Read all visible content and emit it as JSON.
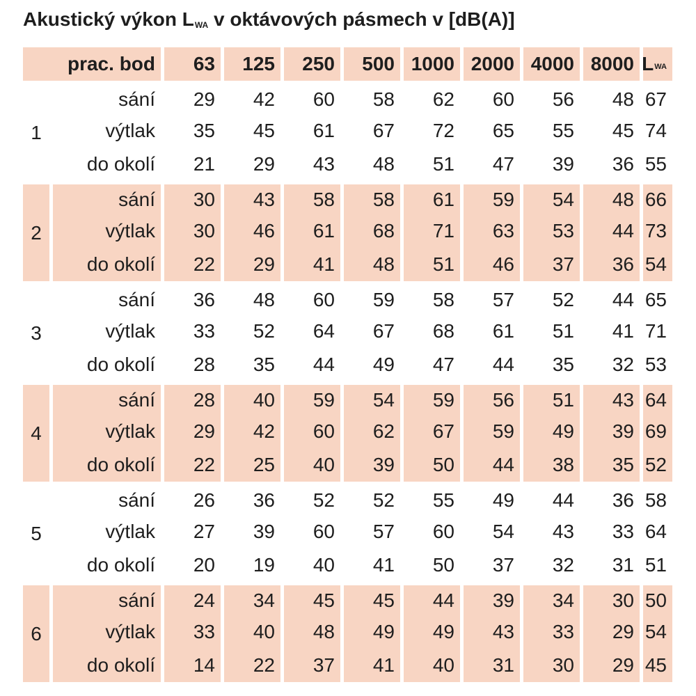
{
  "title": {
    "text": "Akustický výkon L",
    "sub": "WA",
    "rest": " v oktávových pásmech v [dB(A)]"
  },
  "header": {
    "label": "prac. bod",
    "bands": [
      "63",
      "125",
      "250",
      "500",
      "1000",
      "2000",
      "4000",
      "8000"
    ],
    "total": "L",
    "total_sub": "WA"
  },
  "groups": [
    {
      "id": "1",
      "rows": [
        {
          "label": "sání",
          "values": [
            "29",
            "42",
            "60",
            "58",
            "62",
            "60",
            "56",
            "48",
            "67"
          ]
        },
        {
          "label": "výtlak",
          "values": [
            "35",
            "45",
            "61",
            "67",
            "72",
            "65",
            "55",
            "45",
            "74"
          ]
        },
        {
          "label": "do okolí",
          "values": [
            "21",
            "29",
            "43",
            "48",
            "51",
            "47",
            "39",
            "36",
            "55"
          ]
        }
      ]
    },
    {
      "id": "2",
      "rows": [
        {
          "label": "sání",
          "values": [
            "30",
            "43",
            "58",
            "58",
            "61",
            "59",
            "54",
            "48",
            "66"
          ]
        },
        {
          "label": "výtlak",
          "values": [
            "30",
            "46",
            "61",
            "68",
            "71",
            "63",
            "53",
            "44",
            "73"
          ]
        },
        {
          "label": "do okolí",
          "values": [
            "22",
            "29",
            "41",
            "48",
            "51",
            "46",
            "37",
            "36",
            "54"
          ]
        }
      ]
    },
    {
      "id": "3",
      "rows": [
        {
          "label": "sání",
          "values": [
            "36",
            "48",
            "60",
            "59",
            "58",
            "57",
            "52",
            "44",
            "65"
          ]
        },
        {
          "label": "výtlak",
          "values": [
            "33",
            "52",
            "64",
            "67",
            "68",
            "61",
            "51",
            "41",
            "71"
          ]
        },
        {
          "label": "do okolí",
          "values": [
            "28",
            "35",
            "44",
            "49",
            "47",
            "44",
            "35",
            "32",
            "53"
          ]
        }
      ]
    },
    {
      "id": "4",
      "rows": [
        {
          "label": "sání",
          "values": [
            "28",
            "40",
            "59",
            "54",
            "59",
            "56",
            "51",
            "43",
            "64"
          ]
        },
        {
          "label": "výtlak",
          "values": [
            "29",
            "42",
            "60",
            "62",
            "67",
            "59",
            "49",
            "39",
            "69"
          ]
        },
        {
          "label": "do okolí",
          "values": [
            "22",
            "25",
            "40",
            "39",
            "50",
            "44",
            "38",
            "35",
            "52"
          ]
        }
      ]
    },
    {
      "id": "5",
      "rows": [
        {
          "label": "sání",
          "values": [
            "26",
            "36",
            "52",
            "52",
            "55",
            "49",
            "44",
            "36",
            "58"
          ]
        },
        {
          "label": "výtlak",
          "values": [
            "27",
            "39",
            "60",
            "57",
            "60",
            "54",
            "43",
            "33",
            "64"
          ]
        },
        {
          "label": "do okolí",
          "values": [
            "20",
            "19",
            "40",
            "41",
            "50",
            "37",
            "32",
            "31",
            "51"
          ]
        }
      ]
    },
    {
      "id": "6",
      "rows": [
        {
          "label": "sání",
          "values": [
            "24",
            "34",
            "45",
            "45",
            "44",
            "39",
            "34",
            "30",
            "50"
          ]
        },
        {
          "label": "výtlak",
          "values": [
            "33",
            "40",
            "48",
            "49",
            "49",
            "43",
            "33",
            "29",
            "54"
          ]
        },
        {
          "label": "do okolí",
          "values": [
            "14",
            "22",
            "37",
            "41",
            "40",
            "31",
            "30",
            "29",
            "45"
          ]
        }
      ]
    }
  ],
  "colors": {
    "shade": "#f8d5c3",
    "text": "#1e1e1e"
  }
}
